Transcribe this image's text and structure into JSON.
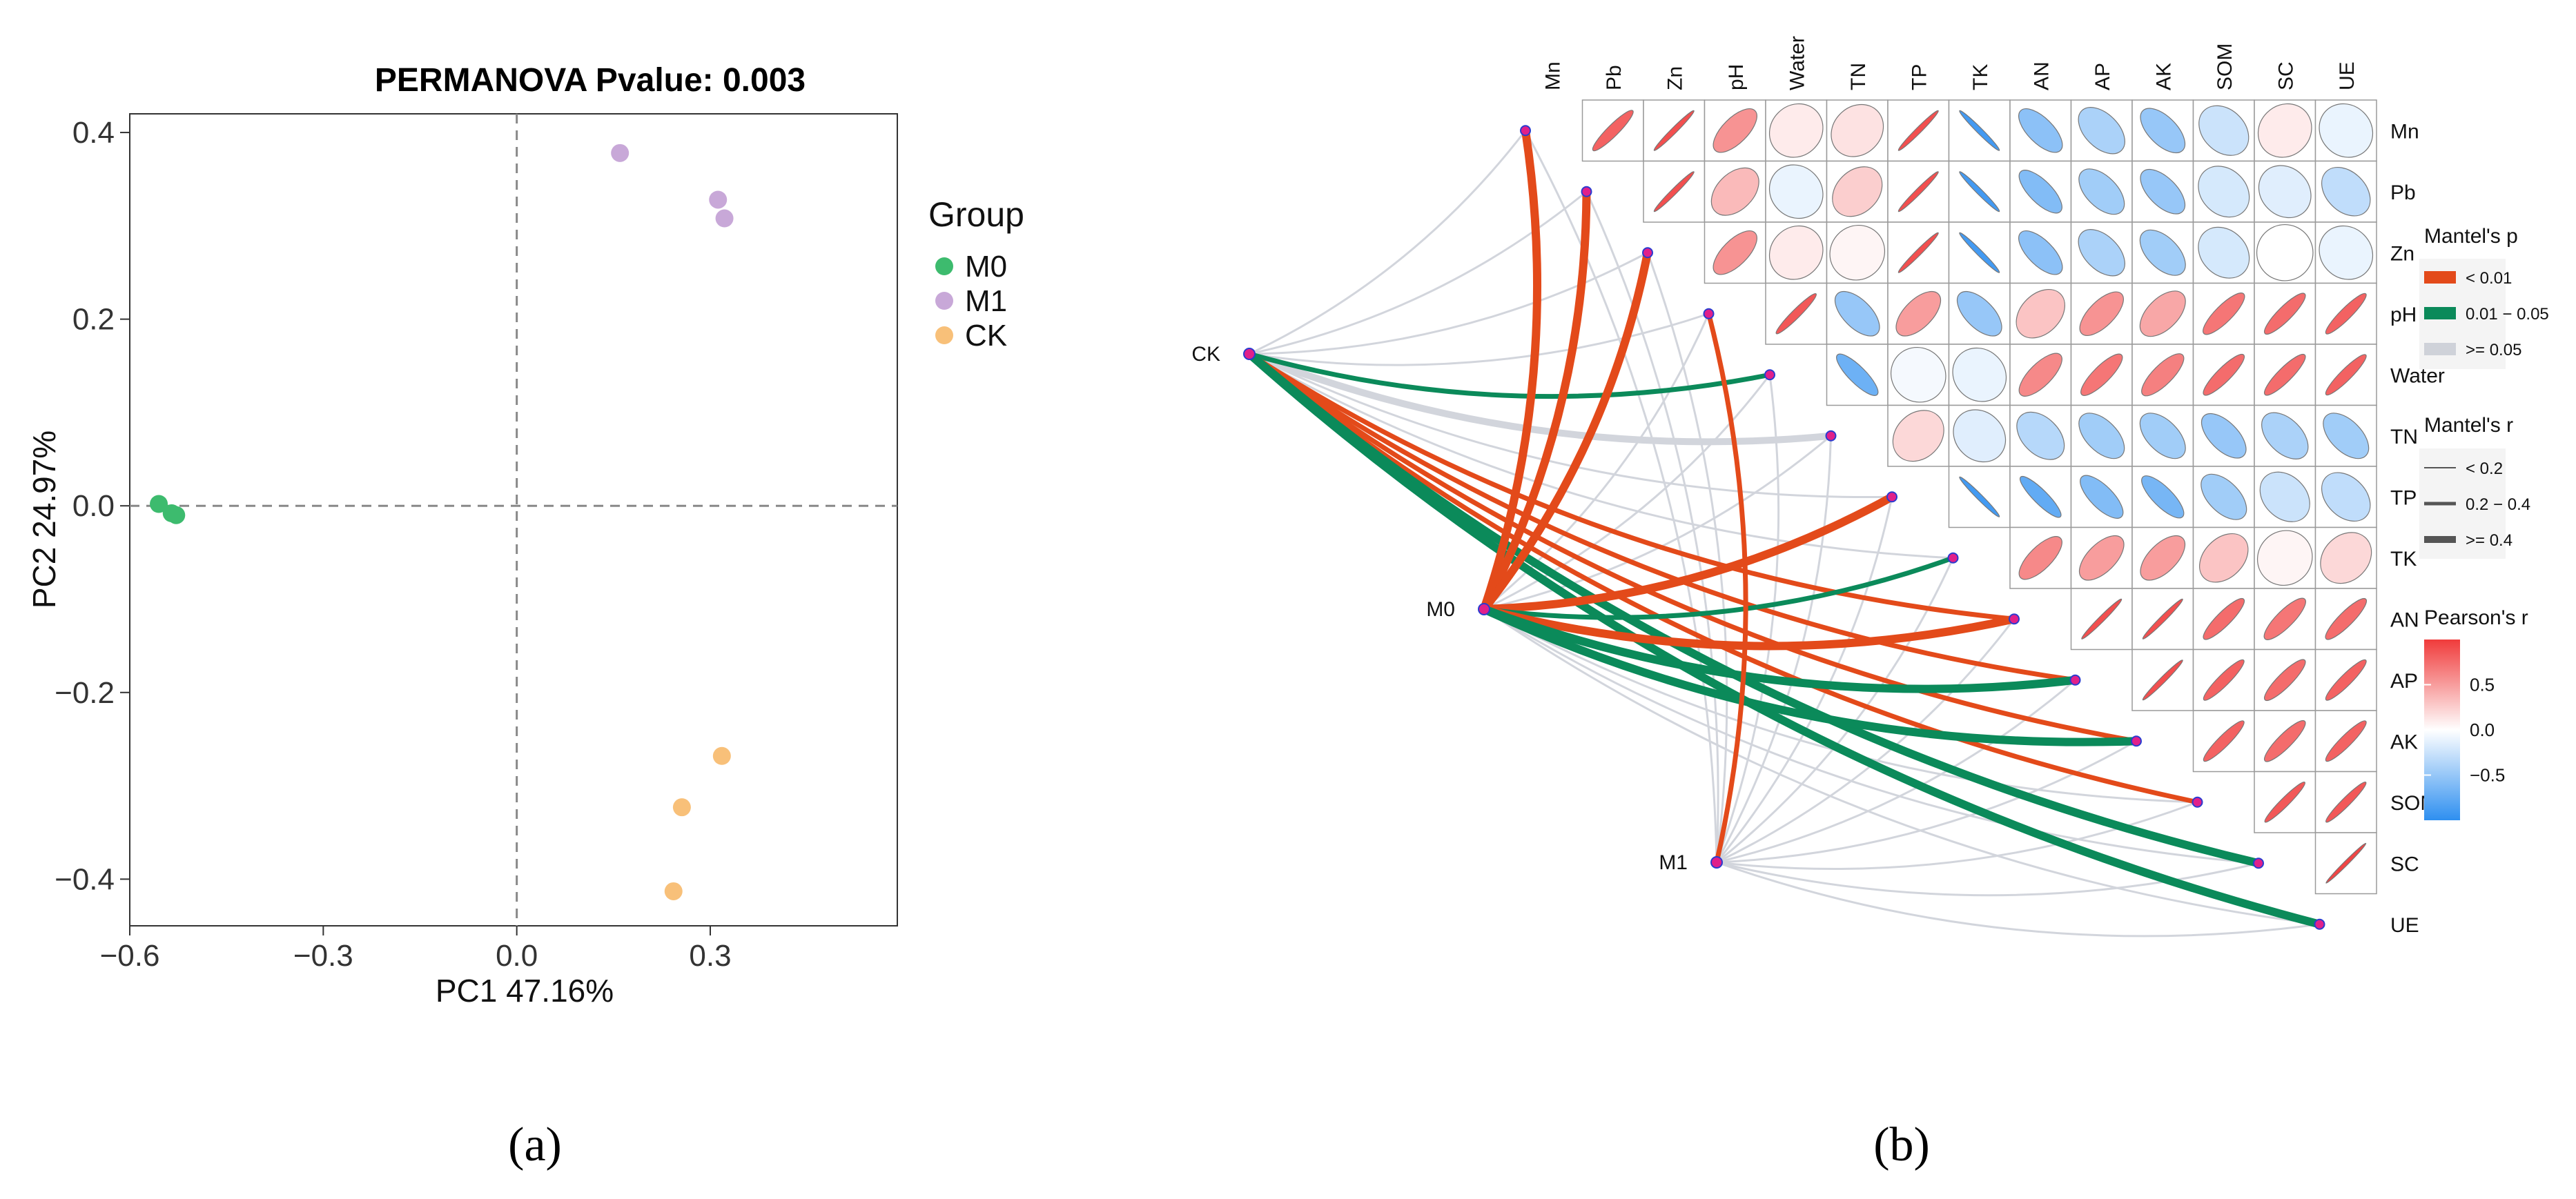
{
  "chart_data": [
    {
      "type": "scatter",
      "panel_label": "(a)",
      "title": "PERMANOVA Pvalue: 0.003",
      "xlabel": "PC1 47.16%",
      "ylabel": "PC2 24.97%",
      "xlim": [
        -0.6,
        0.59
      ],
      "ylim": [
        -0.45,
        0.42
      ],
      "xticks": [
        -0.6,
        -0.3,
        0.0,
        0.3
      ],
      "xtick_labels": [
        "−0.6",
        "−0.3",
        "0.0",
        "0.3"
      ],
      "yticks": [
        -0.4,
        -0.2,
        0.0,
        0.2,
        0.4
      ],
      "ytick_labels": [
        "−0.4",
        "−0.2",
        "0.0",
        "0.2",
        "0.4"
      ],
      "reference_lines": {
        "x": 0.0,
        "y": 0.0,
        "style": "dashed"
      },
      "legend": {
        "title": "Group",
        "position": "right"
      },
      "series": [
        {
          "name": "M0",
          "color": "#3dbb6e",
          "points": [
            {
              "x": -0.555,
              "y": 0.002
            },
            {
              "x": -0.535,
              "y": -0.008
            },
            {
              "x": -0.528,
              "y": -0.01
            }
          ]
        },
        {
          "name": "M1",
          "color": "#c8a8d8",
          "points": [
            {
              "x": 0.16,
              "y": 0.378
            },
            {
              "x": 0.312,
              "y": 0.328
            },
            {
              "x": 0.322,
              "y": 0.308
            }
          ]
        },
        {
          "name": "CK",
          "color": "#f8c079",
          "points": [
            {
              "x": 0.318,
              "y": -0.268
            },
            {
              "x": 0.256,
              "y": -0.323
            },
            {
              "x": 0.243,
              "y": -0.413
            }
          ]
        }
      ]
    },
    {
      "type": "heatmap",
      "subtype": "mantel-correlation",
      "panel_label": "(b)",
      "variables": [
        "Mn",
        "Pb",
        "Zn",
        "pH",
        "Water",
        "TN",
        "TP",
        "TK",
        "AN",
        "AP",
        "AK",
        "SOM",
        "SC",
        "UE"
      ],
      "groups": [
        "CK",
        "M0",
        "M1"
      ],
      "pearson_r": [
        [
          null,
          0.8,
          0.9,
          0.55,
          0.1,
          0.15,
          0.9,
          -0.9,
          -0.55,
          -0.4,
          -0.5,
          -0.25,
          0.1,
          -0.1
        ],
        [
          null,
          null,
          0.9,
          0.35,
          -0.1,
          0.25,
          0.9,
          -0.9,
          -0.6,
          -0.45,
          -0.5,
          -0.2,
          -0.15,
          -0.3
        ],
        [
          null,
          null,
          null,
          0.55,
          0.1,
          0.05,
          0.9,
          -0.9,
          -0.55,
          -0.4,
          -0.45,
          -0.2,
          0.0,
          -0.1
        ],
        [
          null,
          null,
          null,
          null,
          0.85,
          -0.5,
          0.5,
          -0.5,
          0.3,
          0.55,
          0.45,
          0.7,
          0.75,
          0.8
        ],
        [
          null,
          null,
          null,
          null,
          null,
          -0.7,
          -0.05,
          -0.1,
          0.6,
          0.7,
          0.65,
          0.75,
          0.75,
          0.8
        ],
        [
          null,
          null,
          null,
          null,
          null,
          null,
          0.2,
          -0.15,
          -0.35,
          -0.45,
          -0.45,
          -0.5,
          -0.4,
          -0.45
        ],
        [
          null,
          null,
          null,
          null,
          null,
          null,
          null,
          -0.9,
          -0.75,
          -0.6,
          -0.65,
          -0.45,
          -0.25,
          -0.3
        ],
        [
          null,
          null,
          null,
          null,
          null,
          null,
          null,
          null,
          0.6,
          0.5,
          0.5,
          0.3,
          0.05,
          0.2
        ],
        [
          null,
          null,
          null,
          null,
          null,
          null,
          null,
          null,
          null,
          0.9,
          0.9,
          0.75,
          0.7,
          0.75
        ],
        [
          null,
          null,
          null,
          null,
          null,
          null,
          null,
          null,
          null,
          null,
          0.9,
          0.8,
          0.75,
          0.8
        ],
        [
          null,
          null,
          null,
          null,
          null,
          null,
          null,
          null,
          null,
          null,
          null,
          0.8,
          0.75,
          0.8
        ],
        [
          null,
          null,
          null,
          null,
          null,
          null,
          null,
          null,
          null,
          null,
          null,
          null,
          0.85,
          0.85
        ],
        [
          null,
          null,
          null,
          null,
          null,
          null,
          null,
          null,
          null,
          null,
          null,
          null,
          null,
          0.95
        ],
        [
          null,
          null,
          null,
          null,
          null,
          null,
          null,
          null,
          null,
          null,
          null,
          null,
          null,
          null
        ]
      ],
      "mantel_links": [
        {
          "group": "CK",
          "var": "Mn",
          "p": "ns",
          "r": "low"
        },
        {
          "group": "CK",
          "var": "Pb",
          "p": "ns",
          "r": "low"
        },
        {
          "group": "CK",
          "var": "Zn",
          "p": "ns",
          "r": "low"
        },
        {
          "group": "CK",
          "var": "pH",
          "p": "ns",
          "r": "low"
        },
        {
          "group": "CK",
          "var": "Water",
          "p": "mid",
          "r": "mid"
        },
        {
          "group": "CK",
          "var": "TN",
          "p": "ns",
          "r": "high"
        },
        {
          "group": "CK",
          "var": "TP",
          "p": "ns",
          "r": "low"
        },
        {
          "group": "CK",
          "var": "TK",
          "p": "ns",
          "r": "low"
        },
        {
          "group": "CK",
          "var": "AN",
          "p": "low",
          "r": "mid"
        },
        {
          "group": "CK",
          "var": "AP",
          "p": "low",
          "r": "mid"
        },
        {
          "group": "CK",
          "var": "AK",
          "p": "low",
          "r": "mid"
        },
        {
          "group": "CK",
          "var": "SOM",
          "p": "low",
          "r": "mid"
        },
        {
          "group": "CK",
          "var": "SC",
          "p": "mid",
          "r": "high"
        },
        {
          "group": "CK",
          "var": "UE",
          "p": "mid",
          "r": "high"
        },
        {
          "group": "M0",
          "var": "Mn",
          "p": "low",
          "r": "high"
        },
        {
          "group": "M0",
          "var": "Pb",
          "p": "low",
          "r": "high"
        },
        {
          "group": "M0",
          "var": "Zn",
          "p": "low",
          "r": "high"
        },
        {
          "group": "M0",
          "var": "pH",
          "p": "ns",
          "r": "low"
        },
        {
          "group": "M0",
          "var": "Water",
          "p": "ns",
          "r": "low"
        },
        {
          "group": "M0",
          "var": "TN",
          "p": "ns",
          "r": "low"
        },
        {
          "group": "M0",
          "var": "TP",
          "p": "low",
          "r": "high"
        },
        {
          "group": "M0",
          "var": "TK",
          "p": "mid",
          "r": "mid"
        },
        {
          "group": "M0",
          "var": "AN",
          "p": "low",
          "r": "high"
        },
        {
          "group": "M0",
          "var": "AP",
          "p": "mid",
          "r": "high"
        },
        {
          "group": "M0",
          "var": "AK",
          "p": "mid",
          "r": "high"
        },
        {
          "group": "M0",
          "var": "SOM",
          "p": "ns",
          "r": "low"
        },
        {
          "group": "M0",
          "var": "SC",
          "p": "ns",
          "r": "low"
        },
        {
          "group": "M0",
          "var": "UE",
          "p": "ns",
          "r": "low"
        },
        {
          "group": "M1",
          "var": "Mn",
          "p": "ns",
          "r": "low"
        },
        {
          "group": "M1",
          "var": "Pb",
          "p": "ns",
          "r": "low"
        },
        {
          "group": "M1",
          "var": "Zn",
          "p": "ns",
          "r": "low"
        },
        {
          "group": "M1",
          "var": "pH",
          "p": "low",
          "r": "mid"
        },
        {
          "group": "M1",
          "var": "Water",
          "p": "ns",
          "r": "low"
        },
        {
          "group": "M1",
          "var": "TN",
          "p": "ns",
          "r": "low"
        },
        {
          "group": "M1",
          "var": "TP",
          "p": "ns",
          "r": "low"
        },
        {
          "group": "M1",
          "var": "TK",
          "p": "ns",
          "r": "low"
        },
        {
          "group": "M1",
          "var": "AN",
          "p": "ns",
          "r": "low"
        },
        {
          "group": "M1",
          "var": "AP",
          "p": "ns",
          "r": "low"
        },
        {
          "group": "M1",
          "var": "AK",
          "p": "ns",
          "r": "low"
        },
        {
          "group": "M1",
          "var": "SOM",
          "p": "ns",
          "r": "low"
        },
        {
          "group": "M1",
          "var": "SC",
          "p": "ns",
          "r": "low"
        },
        {
          "group": "M1",
          "var": "UE",
          "p": "ns",
          "r": "low"
        }
      ],
      "legend_mantel_p": {
        "title": "Mantel's p",
        "items": [
          {
            "key": "low",
            "label": "< 0.01",
            "color": "#e34a1a"
          },
          {
            "key": "mid",
            "label": "0.01 − 0.05",
            "color": "#0b8a5a"
          },
          {
            "key": "ns",
            "label": ">= 0.05",
            "color": "#cfd2d9"
          }
        ]
      },
      "legend_mantel_r": {
        "title": "Mantel's r",
        "items": [
          {
            "key": "low",
            "label": "< 0.2"
          },
          {
            "key": "mid",
            "label": "0.2 − 0.4"
          },
          {
            "key": "high",
            "label": ">= 0.4"
          }
        ]
      },
      "legend_pearson": {
        "title": "Pearson's r",
        "range": [
          -1,
          1
        ],
        "ticks": [
          0.5,
          0.0,
          -0.5
        ],
        "tick_labels": [
          "0.5",
          "0.0",
          "−0.5"
        ]
      }
    }
  ]
}
